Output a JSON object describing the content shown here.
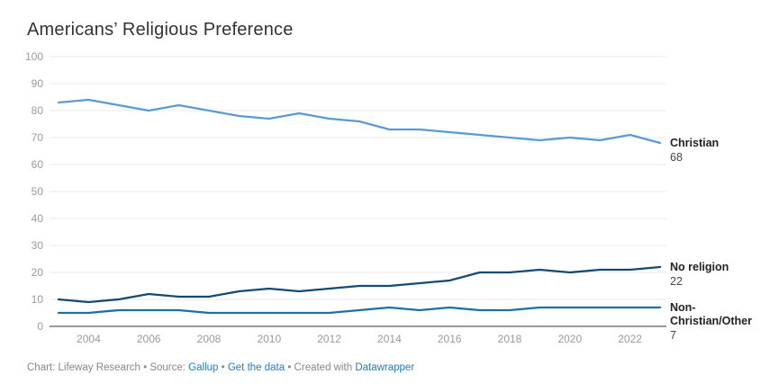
{
  "title": "Americans’ Religious Preference",
  "footer": {
    "prefix": "Chart: Lifeway Research • Source: ",
    "source_link": "Gallup",
    "sep1": " • ",
    "data_link": "Get the data",
    "sep2": " • Created with ",
    "tool_link": "Datawrapper"
  },
  "colors": {
    "christian_line": "#5b9bd5",
    "no_religion_line": "#144a73",
    "non_christian_line": "#1d6fa8",
    "gridline": "#e8e8e8",
    "axis_baseline": "#333333",
    "tick_label": "#9a9a9a",
    "title_text": "#333333",
    "label_name_text": "#222222",
    "label_value_text": "#444444",
    "link_blue": "#1d7dc4",
    "footer_gray": "#878787"
  },
  "chart_data": {
    "type": "line",
    "title": "Americans’ Religious Preference",
    "xlabel": "",
    "ylabel": "",
    "ylim": [
      0,
      100
    ],
    "grid": "horizontal",
    "legend_position": "direct labels at right line ends",
    "x": [
      2003,
      2004,
      2005,
      2006,
      2007,
      2008,
      2009,
      2010,
      2011,
      2012,
      2013,
      2014,
      2015,
      2016,
      2017,
      2018,
      2019,
      2020,
      2021,
      2022,
      2023
    ],
    "x_ticks": [
      2004,
      2006,
      2008,
      2010,
      2012,
      2014,
      2016,
      2018,
      2020,
      2022
    ],
    "y_ticks": [
      0,
      10,
      20,
      30,
      40,
      50,
      60,
      70,
      80,
      90,
      100
    ],
    "series": [
      {
        "name": "Christian",
        "label_lines": [
          "Christian"
        ],
        "end_value_label": "68",
        "color": "#5b9bd5",
        "values": [
          83,
          84,
          82,
          80,
          82,
          80,
          78,
          77,
          79,
          77,
          76,
          73,
          73,
          72,
          71,
          70,
          69,
          70,
          69,
          71,
          68
        ]
      },
      {
        "name": "No religion",
        "label_lines": [
          "No religion"
        ],
        "end_value_label": "22",
        "color": "#144a73",
        "values": [
          10,
          9,
          10,
          12,
          11,
          11,
          13,
          14,
          13,
          14,
          15,
          15,
          16,
          17,
          20,
          20,
          21,
          20,
          21,
          21,
          22
        ]
      },
      {
        "name": "Non-Christian/Other",
        "label_lines": [
          "Non-",
          "Christian/Other"
        ],
        "end_value_label": "7",
        "color": "#1d6fa8",
        "values": [
          5,
          5,
          6,
          6,
          6,
          5,
          5,
          5,
          5,
          5,
          6,
          7,
          6,
          7,
          6,
          6,
          7,
          7,
          7,
          7,
          7
        ]
      }
    ]
  }
}
